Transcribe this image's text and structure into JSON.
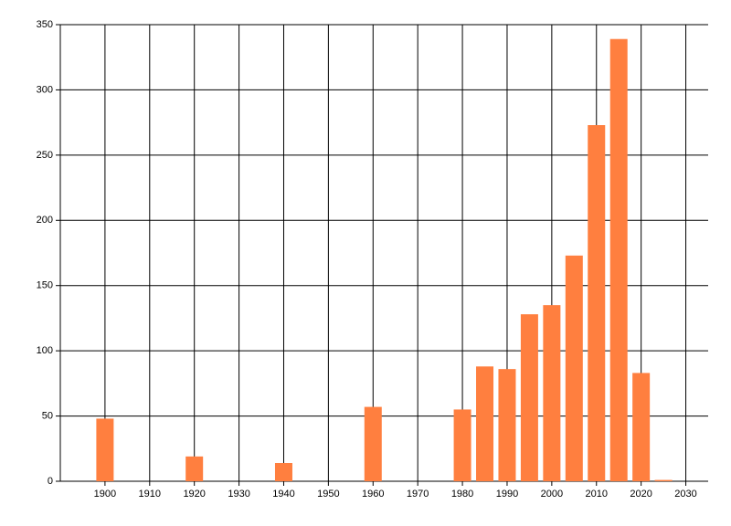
{
  "chart_data": {
    "type": "bar",
    "x": [
      1900,
      1920,
      1940,
      1960,
      1980,
      1985,
      1990,
      1995,
      2000,
      2005,
      2010,
      2015,
      2020,
      2025
    ],
    "values": [
      48,
      19,
      14,
      57,
      55,
      88,
      86,
      128,
      135,
      173,
      273,
      339,
      83,
      1
    ],
    "color": "#ff7f3f",
    "xlim": [
      1890,
      2035
    ],
    "xticks": [
      1900,
      1910,
      1920,
      1930,
      1940,
      1950,
      1960,
      1970,
      1980,
      1990,
      2000,
      2010,
      2020,
      2030
    ],
    "ylim": [
      0,
      350
    ],
    "yticks": [
      0,
      50,
      100,
      150,
      200,
      250,
      300,
      350
    ],
    "grid": true
  }
}
